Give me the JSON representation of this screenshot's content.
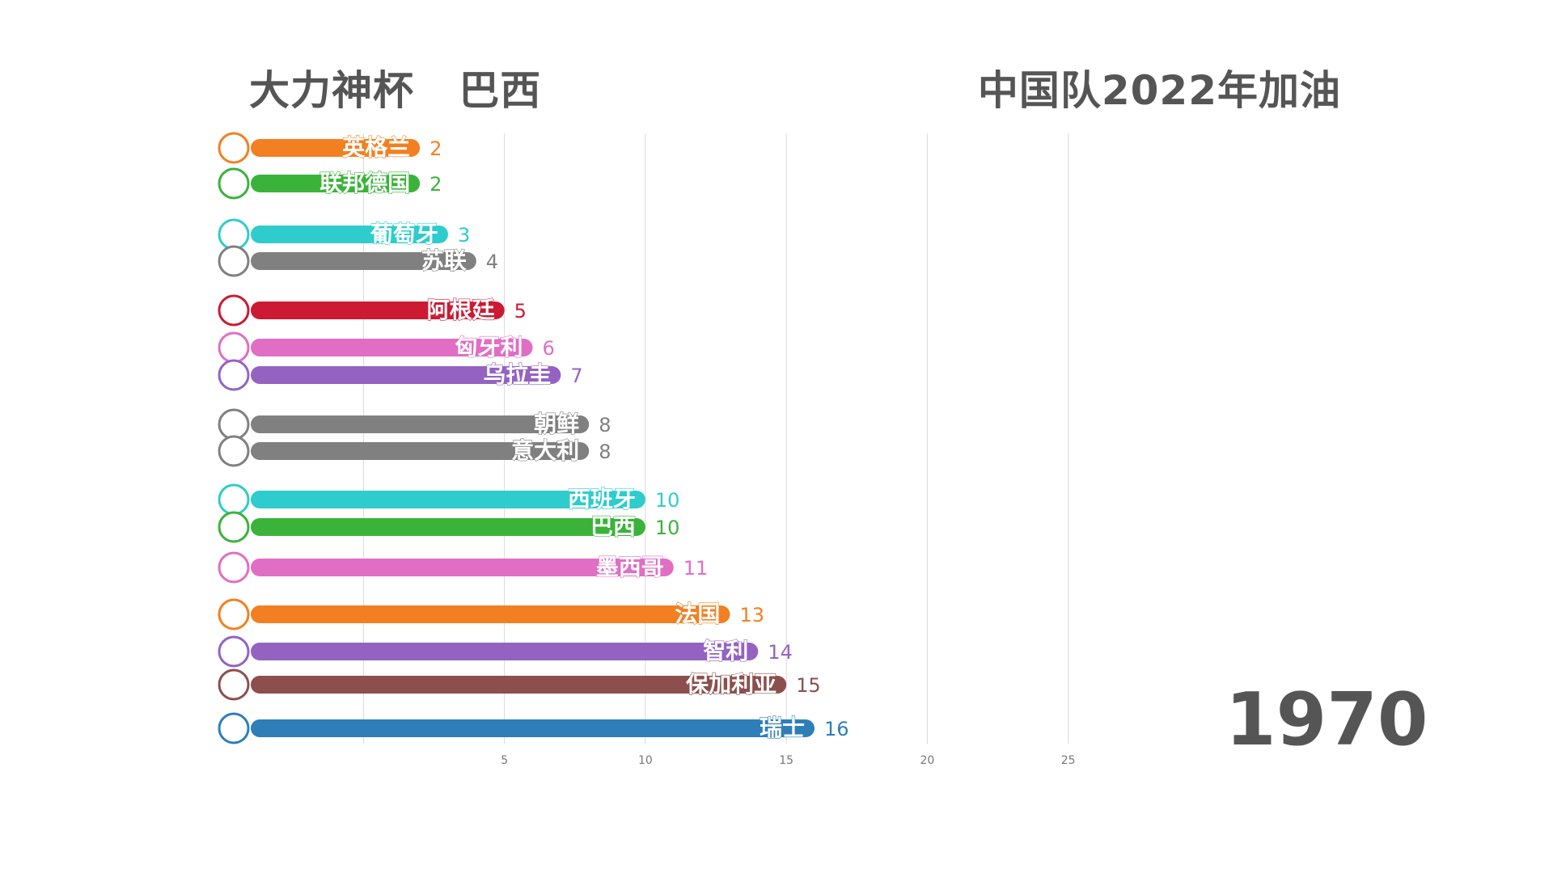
{
  "header": {
    "left_title": "大力神杯   巴西",
    "right_title": "中国队2022年加油"
  },
  "chart_data": {
    "type": "bar",
    "orientation": "horizontal",
    "year": "1970",
    "categories": [
      "英格兰",
      "联邦德国",
      "葡萄牙",
      "苏联",
      "阿根廷",
      "匈牙利",
      "乌拉圭",
      "朝鲜",
      "意大利",
      "西班牙",
      "巴西",
      "墨西哥",
      "法国",
      "智利",
      "保加利亚",
      "瑞士"
    ],
    "values": [
      2,
      2,
      3,
      4,
      5,
      6,
      7,
      8,
      8,
      10,
      10,
      11,
      13,
      14,
      15,
      16
    ],
    "colors": [
      "#f28022",
      "#3bb33b",
      "#2ecccc",
      "#808080",
      "#cc1a33",
      "#e06ec4",
      "#9463c2",
      "#808080",
      "#808080",
      "#2ecccc",
      "#3bb33b",
      "#e06ec4",
      "#f28022",
      "#9463c2",
      "#8c4f4d",
      "#2e7fb8"
    ],
    "xticks": [
      5,
      10,
      15,
      20,
      25
    ],
    "xlim": [
      -4,
      25
    ],
    "grid": true,
    "title": "",
    "xlabel": "",
    "ylabel": ""
  }
}
